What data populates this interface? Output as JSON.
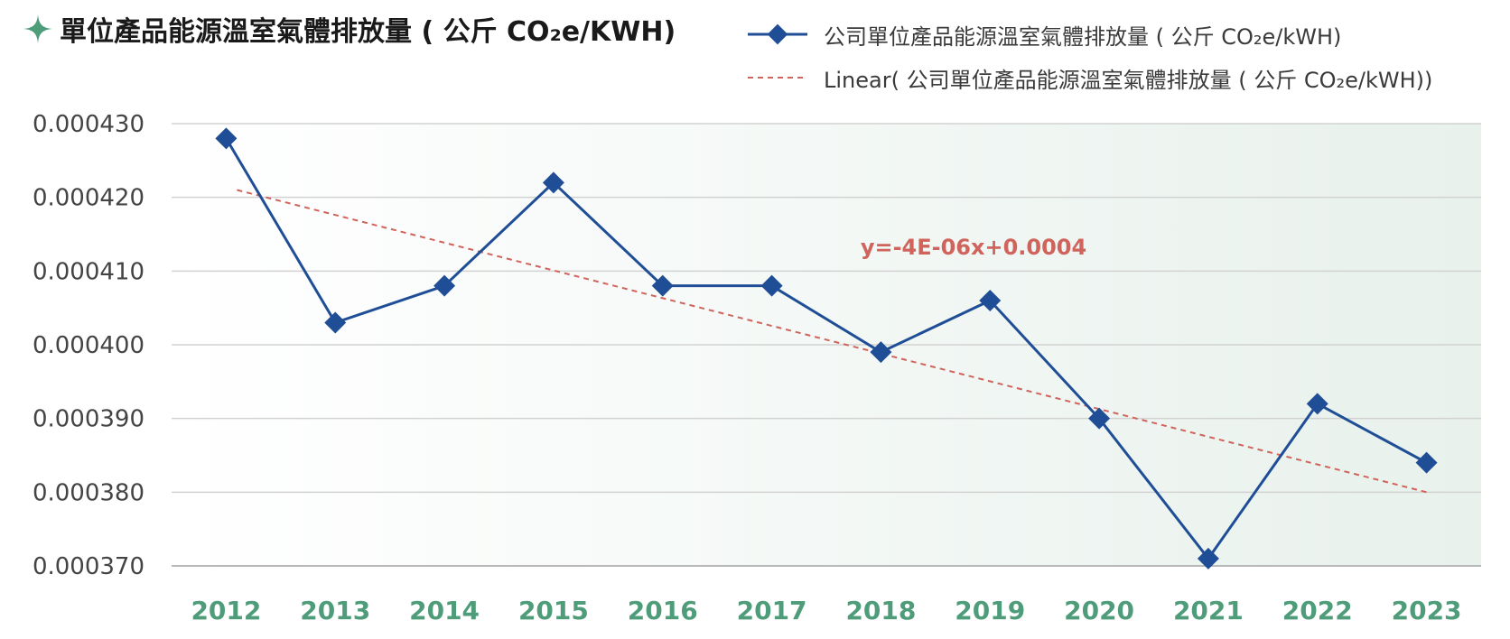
{
  "chart_data": {
    "type": "line",
    "title": "單位產品能源溫室氣體排放量 ( 公斤 CO₂e/KWH)",
    "categories": [
      "2012",
      "2013",
      "2014",
      "2015",
      "2016",
      "2017",
      "2018",
      "2019",
      "2020",
      "2021",
      "2022",
      "2023"
    ],
    "series": [
      {
        "name": "公司單位產品能源溫室氣體排放量 ( 公斤 CO₂e/kWH)",
        "values": [
          0.000428,
          0.000403,
          0.000408,
          0.000422,
          0.000408,
          0.000408,
          0.000399,
          0.000406,
          0.00039,
          0.000371,
          0.000392,
          0.000384
        ],
        "color": "#1f4e96",
        "marker": "diamond"
      }
    ],
    "trendline": {
      "name": "Linear( 公司單位產品能源溫室氣體排放量 ( 公斤 CO₂e/kWH))",
      "start": 0.000421,
      "end": 0.00038,
      "color": "#d0645d",
      "style": "dashed",
      "equation": "y=-4E-06x+0.0004"
    },
    "y_ticks": [
      "0.000430",
      "0.000420",
      "0.000410",
      "0.000400",
      "0.000390",
      "0.000380",
      "0.000370"
    ],
    "ylim": [
      0.00037,
      0.00043
    ],
    "grid": true,
    "legend_position": "top-right",
    "colors": {
      "accent": "#4f9c7a",
      "series": "#1f4e96",
      "trend": "#d0645d"
    }
  }
}
